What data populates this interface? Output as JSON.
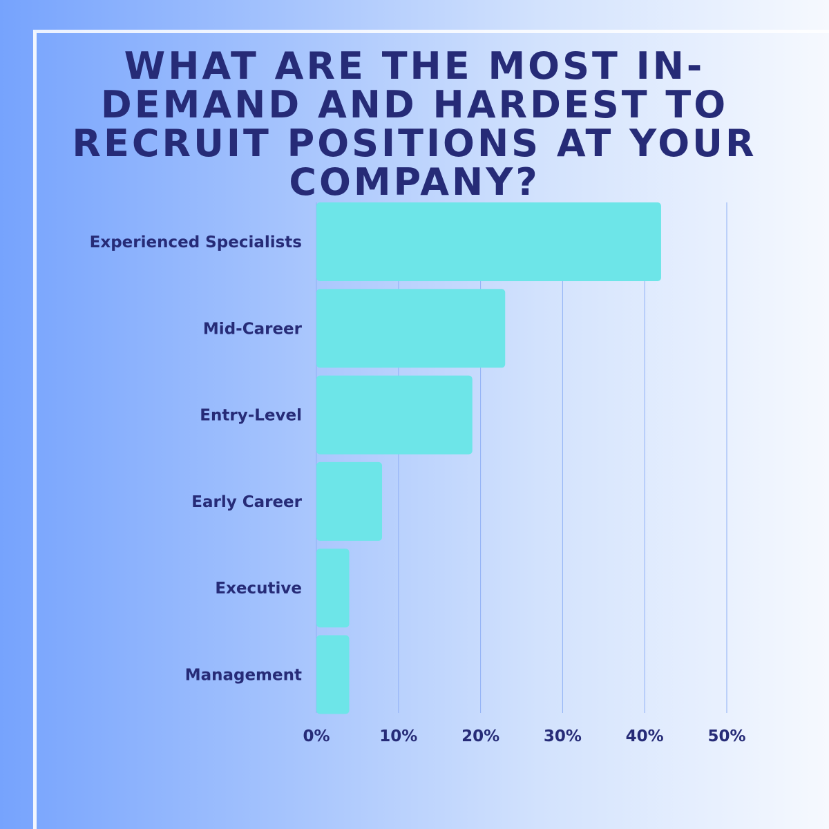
{
  "chart_data": {
    "type": "bar",
    "orientation": "horizontal",
    "title": "What are the most in-demand and hardest to recruit positions at your company?",
    "categories": [
      "Experienced Specialists",
      "Mid-Career",
      "Entry-Level",
      "Early Career",
      "Executive",
      "Management"
    ],
    "values": [
      42,
      23,
      19,
      8,
      4,
      4
    ],
    "unit": "%",
    "xlim": [
      0,
      50
    ],
    "xticks": [
      "0%",
      "10%",
      "20%",
      "30%",
      "40%",
      "50%"
    ],
    "grid": true,
    "bar_color": "#6de5e8",
    "text_color": "#262b77"
  }
}
